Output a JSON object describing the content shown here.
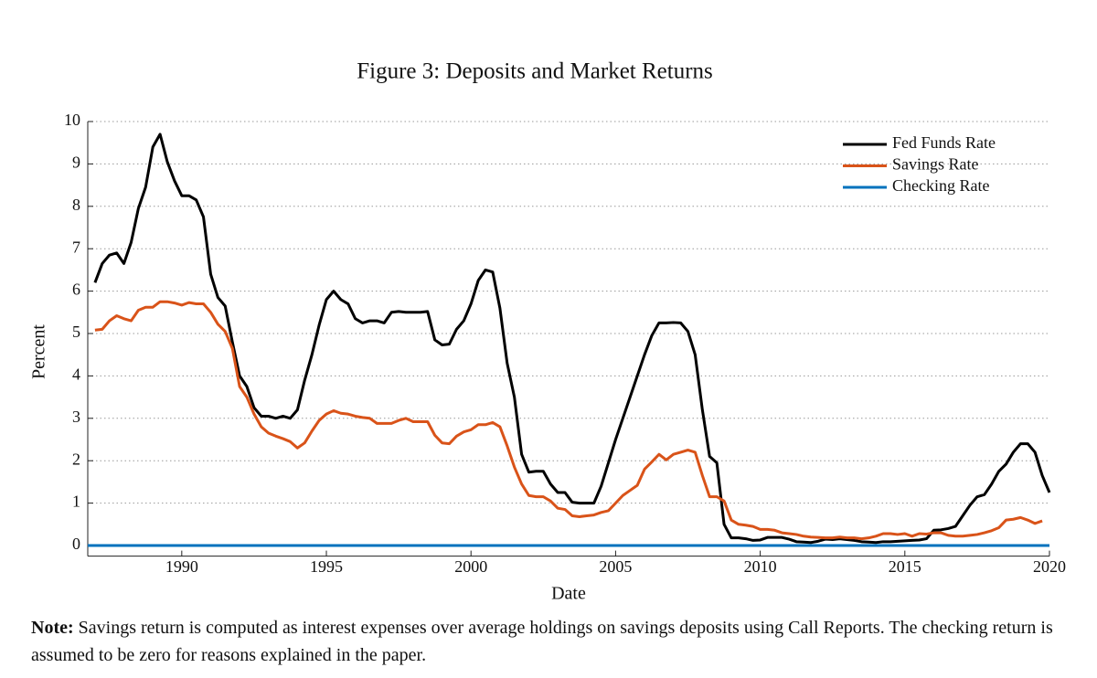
{
  "chart_data": {
    "type": "line",
    "title": "Figure 3: Deposits and Market Returns",
    "xlabel": "Date",
    "ylabel": "Percent",
    "xlim": [
      1986.75,
      2020
    ],
    "ylim": [
      -0.25,
      10
    ],
    "xticks": [
      1990,
      1995,
      2000,
      2005,
      2010,
      2015,
      2020
    ],
    "yticks": [
      0,
      1,
      2,
      3,
      4,
      5,
      6,
      7,
      8,
      9,
      10
    ],
    "grid": true,
    "legend": "upper right",
    "x": [
      1987,
      1987.25,
      1987.5,
      1987.75,
      1988,
      1988.25,
      1988.5,
      1988.75,
      1989,
      1989.25,
      1989.5,
      1989.75,
      1990,
      1990.25,
      1990.5,
      1990.75,
      1991,
      1991.25,
      1991.5,
      1991.75,
      1992,
      1992.25,
      1992.5,
      1992.75,
      1993,
      1993.25,
      1993.5,
      1993.75,
      1994,
      1994.25,
      1994.5,
      1994.75,
      1995,
      1995.25,
      1995.5,
      1995.75,
      1996,
      1996.25,
      1996.5,
      1996.75,
      1997,
      1997.25,
      1997.5,
      1997.75,
      1998,
      1998.25,
      1998.5,
      1998.75,
      1999,
      1999.25,
      1999.5,
      1999.75,
      2000,
      2000.25,
      2000.5,
      2000.75,
      2001,
      2001.25,
      2001.5,
      2001.75,
      2002,
      2002.25,
      2002.5,
      2002.75,
      2003,
      2003.25,
      2003.5,
      2003.75,
      2004,
      2004.25,
      2004.5,
      2004.75,
      2005,
      2005.25,
      2005.5,
      2005.75,
      2006,
      2006.25,
      2006.5,
      2006.75,
      2007,
      2007.25,
      2007.5,
      2007.75,
      2008,
      2008.25,
      2008.5,
      2008.75,
      2009,
      2009.25,
      2009.5,
      2009.75,
      2010,
      2010.25,
      2010.5,
      2010.75,
      2011,
      2011.25,
      2011.5,
      2011.75,
      2012,
      2012.25,
      2012.5,
      2012.75,
      2013,
      2013.25,
      2013.5,
      2013.75,
      2014,
      2014.25,
      2014.5,
      2014.75,
      2015,
      2015.25,
      2015.5,
      2015.75,
      2016,
      2016.25,
      2016.5,
      2016.75,
      2017,
      2017.25,
      2017.5,
      2017.75,
      2018,
      2018.25,
      2018.5,
      2018.75,
      2019,
      2019.25,
      2019.5,
      2019.75,
      2020
    ],
    "series": [
      {
        "name": "Fed Funds Rate",
        "color": "#000000",
        "values": [
          6.2,
          6.65,
          6.85,
          6.9,
          6.65,
          7.15,
          7.95,
          8.45,
          9.4,
          9.7,
          9.05,
          8.6,
          8.25,
          8.25,
          8.15,
          7.75,
          6.4,
          5.85,
          5.65,
          4.8,
          4.0,
          3.75,
          3.25,
          3.05,
          3.05,
          3.0,
          3.05,
          3.0,
          3.2,
          3.9,
          4.5,
          5.2,
          5.8,
          6.0,
          5.8,
          5.7,
          5.35,
          5.25,
          5.3,
          5.3,
          5.25,
          5.5,
          5.52,
          5.5,
          5.5,
          5.5,
          5.52,
          4.85,
          4.73,
          4.75,
          5.1,
          5.3,
          5.7,
          6.25,
          6.5,
          6.45,
          5.6,
          4.3,
          3.5,
          2.15,
          1.73,
          1.75,
          1.75,
          1.45,
          1.25,
          1.25,
          1.02,
          1.0,
          1.0,
          1.0,
          1.4,
          1.95,
          2.5,
          3.0,
          3.5,
          4.0,
          4.5,
          4.95,
          5.25,
          5.25,
          5.26,
          5.25,
          5.05,
          4.5,
          3.2,
          2.1,
          1.95,
          0.5,
          0.18,
          0.18,
          0.16,
          0.12,
          0.13,
          0.19,
          0.19,
          0.19,
          0.15,
          0.09,
          0.08,
          0.07,
          0.1,
          0.15,
          0.14,
          0.16,
          0.14,
          0.12,
          0.09,
          0.08,
          0.07,
          0.09,
          0.09,
          0.1,
          0.11,
          0.12,
          0.13,
          0.16,
          0.36,
          0.37,
          0.4,
          0.45,
          0.7,
          0.95,
          1.15,
          1.2,
          1.45,
          1.75,
          1.92,
          2.2,
          2.4,
          2.4,
          2.2,
          1.65,
          1.25
        ]
      },
      {
        "name": "Savings Rate",
        "color": "#d95319",
        "values": [
          5.08,
          5.1,
          5.3,
          5.42,
          5.35,
          5.3,
          5.55,
          5.62,
          5.62,
          5.75,
          5.75,
          5.72,
          5.67,
          5.73,
          5.7,
          5.7,
          5.5,
          5.22,
          5.05,
          4.65,
          3.75,
          3.5,
          3.1,
          2.8,
          2.65,
          2.58,
          2.52,
          2.45,
          2.3,
          2.42,
          2.7,
          2.95,
          3.1,
          3.18,
          3.12,
          3.1,
          3.05,
          3.02,
          3.0,
          2.88,
          2.88,
          2.88,
          2.95,
          3.0,
          2.92,
          2.92,
          2.92,
          2.6,
          2.42,
          2.4,
          2.58,
          2.68,
          2.73,
          2.85,
          2.85,
          2.9,
          2.8,
          2.35,
          1.85,
          1.45,
          1.18,
          1.15,
          1.15,
          1.05,
          0.88,
          0.85,
          0.7,
          0.68,
          0.7,
          0.72,
          0.78,
          0.82,
          1.0,
          1.18,
          1.3,
          1.42,
          1.8,
          1.97,
          2.15,
          2.02,
          2.15,
          2.2,
          2.25,
          2.2,
          1.65,
          1.15,
          1.15,
          1.05,
          0.6,
          0.5,
          0.48,
          0.45,
          0.38,
          0.38,
          0.36,
          0.3,
          0.28,
          0.26,
          0.22,
          0.2,
          0.19,
          0.18,
          0.18,
          0.2,
          0.18,
          0.18,
          0.16,
          0.18,
          0.22,
          0.28,
          0.28,
          0.26,
          0.28,
          0.22,
          0.28,
          0.27,
          0.3,
          0.3,
          0.24,
          0.22,
          0.22,
          0.24,
          0.26,
          0.3,
          0.35,
          0.42,
          0.6,
          0.62,
          0.66,
          0.6,
          0.52,
          0.58,
          null
        ]
      },
      {
        "name": "Checking Rate",
        "color": "#0072bd",
        "x": [
          1986.75,
          2020
        ],
        "values": [
          0,
          0
        ]
      }
    ]
  },
  "note": {
    "label": "Note:",
    "text": "Savings return is computed as interest expenses over average holdings on savings deposits using Call Reports. The checking return is assumed to be zero for reasons explained in the paper."
  }
}
